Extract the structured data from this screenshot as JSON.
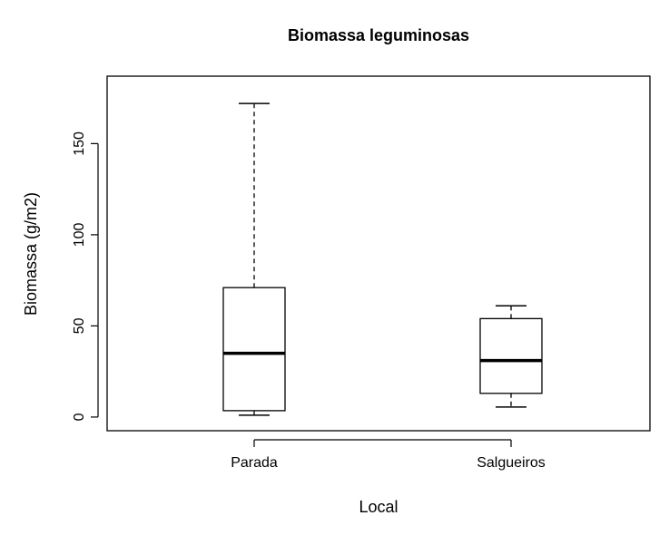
{
  "chart_data": {
    "type": "boxplot",
    "title": "Biomassa leguminosas",
    "xlabel": "Local",
    "ylabel": "Biomassa (g/m2)",
    "categories": [
      "Parada",
      "Salgueiros"
    ],
    "min": [
      1,
      5.5
    ],
    "q1": [
      3.5,
      13
    ],
    "median": [
      35,
      31
    ],
    "q3": [
      71,
      54
    ],
    "max": [
      172,
      61
    ],
    "color": "#000000",
    "ylim": [
      -7.5,
      187
    ],
    "yticks": [
      0,
      50,
      100,
      150
    ]
  }
}
